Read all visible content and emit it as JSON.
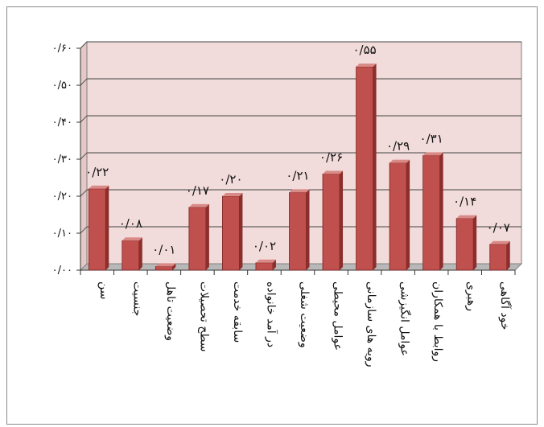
{
  "chart_data": {
    "type": "bar",
    "title": "",
    "xlabel": "",
    "ylabel": "",
    "categories": [
      "سن",
      "جنسیت",
      "وضعیت تاهل",
      "سطح تحصیلات",
      "سابقه خدمت",
      "در آمد خانواده",
      "وضعیت شغلی",
      "عوامل محیطی",
      "رویه های سازمانی",
      "عوامل انگیزشی",
      "روابط با همکاران",
      "رهبری",
      "خود آگاهی"
    ],
    "values": [
      0.22,
      0.08,
      0.01,
      0.17,
      0.2,
      0.02,
      0.21,
      0.26,
      0.55,
      0.29,
      0.31,
      0.14,
      0.07
    ],
    "data_labels": [
      "۰/۲۲",
      "۰/۰۸",
      "۰/۰۱",
      "۰/۱۷",
      "۰/۲۰",
      "۰/۰۲",
      "۰/۲۱",
      "۰/۲۶",
      "۰/۵۵",
      "۰/۲۹",
      "۰/۳۱",
      "۰/۱۴",
      "۰/۰۷"
    ],
    "ylim": [
      0,
      0.6
    ],
    "yticks": [
      0,
      0.1,
      0.2,
      0.3,
      0.4,
      0.5,
      0.6
    ],
    "ytick_labels": [
      "۰/۰۰",
      "۰/۱۰",
      "۰/۲۰",
      "۰/۳۰",
      "۰/۴۰",
      "۰/۵۰",
      "۰/۶۰"
    ],
    "grid": true,
    "legend": "none",
    "colors": {
      "bar_front": "#c0504d",
      "bar_side": "#8c2e2c",
      "bar_top": "#d98a87",
      "plot_back": "#f2dcdb",
      "floor": "#b8b8b8"
    }
  }
}
